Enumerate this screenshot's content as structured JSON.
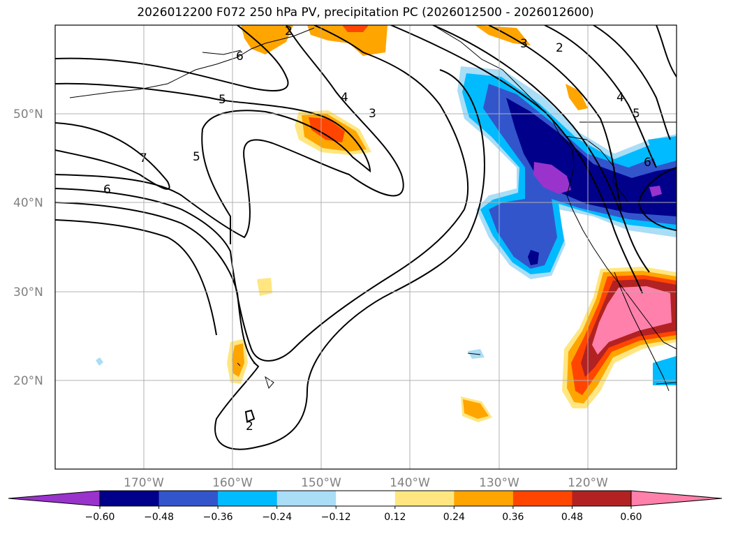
{
  "title": "2026012200 F072 250 hPa PV, precipitation PC (2026012500 - 2026012600)",
  "map": {
    "projection": "PlateCarree",
    "lon_range": [
      -180,
      -110
    ],
    "lat_range": [
      10,
      60
    ],
    "grid": true,
    "lat_ticks": [
      "20°N",
      "30°N",
      "40°N",
      "50°N"
    ],
    "lon_ticks": [
      "170°W",
      "160°W",
      "150°W",
      "140°W",
      "130°W",
      "120°W"
    ],
    "pv_contour_labels": [
      "6",
      "5",
      "4",
      "3",
      "2",
      "5",
      "7",
      "6",
      "2",
      "3",
      "4",
      "5",
      "6",
      "2"
    ]
  },
  "colorbar": {
    "orientation": "horizontal",
    "extend": "both",
    "tick_labels": [
      "−0.60",
      "−0.48",
      "−0.36",
      "−0.24",
      "−0.12",
      "0.12",
      "0.24",
      "0.36",
      "0.48",
      "0.60"
    ],
    "colors": [
      "#9933cc",
      "#00008b",
      "#3355cc",
      "#00bbff",
      "#aaddf6",
      "#ffffff",
      "#ffe680",
      "#ffa500",
      "#ff4500",
      "#b22222",
      "#ff80aa"
    ]
  }
}
